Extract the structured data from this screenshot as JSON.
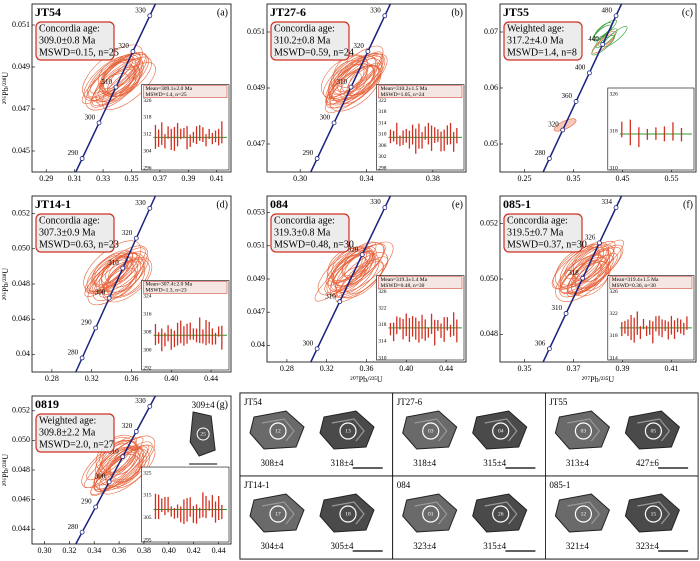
{
  "panels": [
    {
      "sample": "JT54",
      "letter": "(a)",
      "box": [
        "Concordia age:",
        "309.0±0.8 Ma",
        "MSWD=0.15, n=25"
      ],
      "concordia": [
        "330",
        "320",
        "310",
        "300",
        "290"
      ],
      "inset_text": [
        "Mean=309.1±2.0 Ma",
        "MSWD=1.4, n=25"
      ],
      "inset_ticks": [
        "326",
        "318",
        "312",
        "304",
        "296"
      ],
      "xticks": [
        "0.29",
        "0.31",
        "0.33",
        "0.35",
        "0.37",
        "0.39",
        "0.41"
      ],
      "yticks": [
        "0.051",
        "0.049",
        "0.047",
        "0.045"
      ],
      "ylabel": "²⁰⁶Pb/²³⁸U"
    },
    {
      "sample": "JT27-6",
      "letter": "(b)",
      "box": [
        "Concordia age:",
        "310.2±0.8 Ma",
        "MSWD=0.59, n=24"
      ],
      "concordia": [
        "330",
        "320",
        "310",
        "300",
        "290"
      ],
      "inset_text": [
        "Mean=310.2±1.5 Ma",
        "MSWD=1.05, n=24"
      ],
      "inset_ticks": [
        "322",
        "318",
        "314",
        "310",
        "306",
        "302",
        "298"
      ],
      "xticks": [
        "0.30",
        "0.34",
        "0.38"
      ],
      "yticks": [
        "0.051",
        "0.049",
        "0.047"
      ]
    },
    {
      "sample": "JT55",
      "letter": "(c)",
      "box": [
        "Weighted age:",
        "317.2±4.0 Ma",
        "MSWD=1.4, n=8"
      ],
      "concordia": [
        "480",
        "440",
        "400",
        "360",
        "320",
        "280"
      ],
      "inset_ticks": [
        "326",
        "318",
        "310"
      ],
      "xticks": [
        "0.25",
        "0.35",
        "0.45",
        "0.55"
      ],
      "yticks": [
        "0.07",
        "0.06",
        "0.05"
      ]
    },
    {
      "sample": "JT14-1",
      "letter": "(d)",
      "box": [
        "Concordia age:",
        "307.3±0.9 Ma",
        "MSWD=0.63, n=23"
      ],
      "concordia": [
        "330",
        "320",
        "310",
        "300",
        "290",
        "280"
      ],
      "inset_text": [
        "Mean=307.4±2.0 Ma",
        "MSWD=1.3, n=23"
      ],
      "inset_ticks": [
        "324",
        "316",
        "308",
        "300",
        "292"
      ],
      "xticks": [
        "0.28",
        "0.32",
        "0.36",
        "0.40",
        "0.44"
      ],
      "yticks": [
        "0.052",
        "0.050",
        "0.048",
        "0.046",
        "0.04"
      ],
      "ylabel": "²⁰⁶Pb/²³⁸U"
    },
    {
      "sample": "084",
      "letter": "(e)",
      "box": [
        "Concordia age:",
        "319.3±0.8 Ma",
        "MSWD=0.48, n=30"
      ],
      "concordia": [
        "330",
        "320",
        "310",
        "300"
      ],
      "inset_text": [
        "Mean=319.3±1.4 Ma",
        "MSWD=0.48, n=30"
      ],
      "inset_ticks": [
        "326",
        "322",
        "318",
        "314",
        "310"
      ],
      "xticks": [
        "0.28",
        "0.32",
        "0.36",
        "0.40",
        "0.44"
      ],
      "yticks": [
        "0.053",
        "0.051",
        "0.049",
        "0.047",
        "0.04"
      ],
      "xlabel": "²⁰⁷Pb/²³⁵U"
    },
    {
      "sample": "085-1",
      "letter": "(f)",
      "box": [
        "Concordia age:",
        "319.5±0.7 Ma",
        "MSWD=0.37, n=30"
      ],
      "concordia": [
        "334",
        "326",
        "318",
        "310",
        "306"
      ],
      "inset_text": [
        "Mean=319.4±1.5 Ma",
        "MSWD=0.36, n=30"
      ],
      "inset_ticks": [
        "326",
        "322",
        "318",
        "314"
      ],
      "xticks": [
        "0.35",
        "0.37",
        "0.39",
        "0.41"
      ],
      "yticks": [
        "0.052",
        "0.050",
        "0.048"
      ],
      "xlabel": "²⁰⁷Pb/²³⁵U"
    },
    {
      "sample": "0819",
      "letter": "(g)",
      "box": [
        "Weighted age:",
        "309.8±2.2 Ma",
        "MSWD=2.0, n=27"
      ],
      "concordia": [
        "330",
        "320",
        "310",
        "300",
        "290",
        "280"
      ],
      "inset_ticks": [
        "325",
        "315",
        "305",
        "295"
      ],
      "xticks": [
        "0.30",
        "0.32",
        "0.34",
        "0.36",
        "0.38",
        "0.40",
        "0.42",
        "0.44"
      ],
      "yticks": [
        "0.052",
        "0.050",
        "0.048",
        "0.046",
        "0.044"
      ],
      "ylabel": "²⁰⁶Pb/²³⁸U",
      "grain": {
        "spot": "25",
        "age": "309±4"
      }
    }
  ],
  "cl_images": [
    {
      "sample": "JT54",
      "spots": [
        "12",
        "13"
      ],
      "ages": [
        "308±4",
        "318±4"
      ]
    },
    {
      "sample": "JT27-6",
      "spots": [
        "03",
        "04"
      ],
      "ages": [
        "318±4",
        "315±4"
      ]
    },
    {
      "sample": "JT55",
      "spots": [
        "03",
        "05"
      ],
      "ages": [
        "313±4",
        "427±6"
      ]
    },
    {
      "sample": "JT14-1",
      "spots": [
        "17",
        "18"
      ],
      "ages": [
        "304±4",
        "305±4"
      ]
    },
    {
      "sample": "084",
      "spots": [
        "01",
        "26"
      ],
      "ages": [
        "323±4",
        "315±4"
      ]
    },
    {
      "sample": "085-1",
      "spots": [
        "12",
        "15"
      ],
      "ages": [
        "321±4",
        "323±4"
      ]
    }
  ]
}
